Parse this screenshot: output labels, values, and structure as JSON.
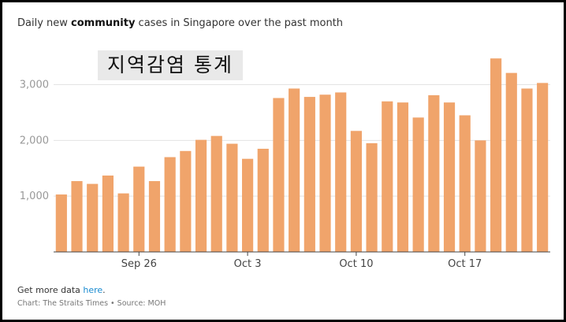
{
  "chart_data": {
    "type": "bar",
    "title_pre": "Daily new ",
    "title_bold": "community",
    "title_post": " cases in Singapore over the past month",
    "overlay_text": "지역감염 통계",
    "x_ticks": [
      "Sep 26",
      "Oct 3",
      "Oct 10",
      "Oct 17"
    ],
    "x_tick_positions": [
      5,
      12,
      19,
      26
    ],
    "y_ticks": [
      "1,000",
      "2,000",
      "3,000"
    ],
    "y_tick_values": [
      1000,
      2000,
      3000
    ],
    "ylim": [
      0,
      3600
    ],
    "grid": true,
    "bar_color": "#f0a46b",
    "values": [
      1030,
      1270,
      1220,
      1370,
      1050,
      1530,
      1270,
      1700,
      1810,
      2010,
      2080,
      1940,
      1670,
      1850,
      2760,
      2930,
      2780,
      2820,
      2860,
      2170,
      1950,
      2700,
      2680,
      2410,
      2810,
      2680,
      2450,
      2000,
      3470,
      3210,
      2930,
      3030
    ]
  },
  "footer": {
    "more_prefix": "Get more data ",
    "more_link": "here",
    "more_suffix": ".",
    "credit": "Chart: The Straits Times • Source: MOH"
  }
}
